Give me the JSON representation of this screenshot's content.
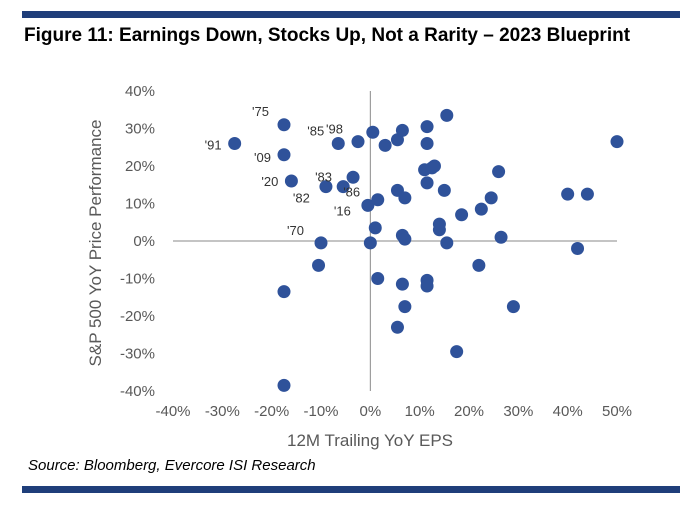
{
  "figure": {
    "title": "Figure 11: Earnings Down, Stocks Up, Not a Rarity – 2023 Blueprint",
    "source": "Source: Bloomberg, Evercore ISI Research"
  },
  "colors": {
    "accent": "#1f3e7a",
    "marker": "#2f529a",
    "axis": "#8a8a8a",
    "text": "#595959"
  },
  "chart_data": {
    "type": "scatter",
    "title": "",
    "xlabel": "12M Trailing YoY EPS",
    "ylabel": "S&P 500 YoY Price Performance",
    "xlim": [
      -40,
      50
    ],
    "ylim": [
      -40,
      40
    ],
    "x_ticks": [
      -40,
      -30,
      -20,
      -10,
      0,
      10,
      20,
      30,
      40,
      50
    ],
    "y_ticks": [
      -40,
      -30,
      -20,
      -10,
      0,
      10,
      20,
      30,
      40
    ],
    "x_tick_labels": [
      "-40%",
      "-30%",
      "-20%",
      "-10%",
      "0%",
      "10%",
      "20%",
      "30%",
      "40%",
      "50%"
    ],
    "y_tick_labels": [
      "-40%",
      "-30%",
      "-20%",
      "-10%",
      "0%",
      "10%",
      "20%",
      "30%",
      "40%"
    ],
    "grid": false,
    "legend": "none",
    "points": [
      {
        "x": -27.5,
        "y": 26,
        "label": "'91"
      },
      {
        "x": -17.5,
        "y": 31,
        "label": "'75"
      },
      {
        "x": -17.5,
        "y": 23,
        "label": "'09"
      },
      {
        "x": -16,
        "y": 16,
        "label": "'20"
      },
      {
        "x": -9,
        "y": 14.5,
        "label": "'82"
      },
      {
        "x": -10,
        "y": -0.5,
        "label": "'70"
      },
      {
        "x": -6.5,
        "y": 26,
        "label": "'85"
      },
      {
        "x": -2.5,
        "y": 26.5,
        "label": "'98"
      },
      {
        "x": -3.5,
        "y": 17,
        "label": "'83"
      },
      {
        "x": -5.5,
        "y": 14.5,
        "label": "'86"
      },
      {
        "x": -0.5,
        "y": 9.5,
        "label": "'16"
      },
      {
        "x": -17.5,
        "y": -13.5
      },
      {
        "x": -17.5,
        "y": -38.5
      },
      {
        "x": -10.5,
        "y": -6.5
      },
      {
        "x": 0.5,
        "y": 29
      },
      {
        "x": 3,
        "y": 25.5
      },
      {
        "x": 5.5,
        "y": 27
      },
      {
        "x": 6.5,
        "y": 29.5
      },
      {
        "x": 11.5,
        "y": 30.5
      },
      {
        "x": 15.5,
        "y": 33.5
      },
      {
        "x": 11.5,
        "y": 26
      },
      {
        "x": 11,
        "y": 19
      },
      {
        "x": 12.5,
        "y": 19.5
      },
      {
        "x": 13,
        "y": 20
      },
      {
        "x": 11.5,
        "y": 15.5
      },
      {
        "x": 15,
        "y": 13.5
      },
      {
        "x": 5.5,
        "y": 13.5
      },
      {
        "x": 7,
        "y": 11.5
      },
      {
        "x": 1.5,
        "y": 11
      },
      {
        "x": 1,
        "y": 3.5
      },
      {
        "x": 0,
        "y": -0.5
      },
      {
        "x": 6.5,
        "y": 1.5
      },
      {
        "x": 7,
        "y": 0.5
      },
      {
        "x": 14,
        "y": 4.5
      },
      {
        "x": 14,
        "y": 3
      },
      {
        "x": 15.5,
        "y": -0.5
      },
      {
        "x": 18.5,
        "y": 7
      },
      {
        "x": 22.5,
        "y": 8.5
      },
      {
        "x": 24.5,
        "y": 11.5
      },
      {
        "x": 26,
        "y": 18.5
      },
      {
        "x": 26.5,
        "y": 1
      },
      {
        "x": 22,
        "y": -6.5
      },
      {
        "x": 1.5,
        "y": -10
      },
      {
        "x": 6.5,
        "y": -11.5
      },
      {
        "x": 11.5,
        "y": -10.5
      },
      {
        "x": 11.5,
        "y": -12
      },
      {
        "x": 7,
        "y": -17.5
      },
      {
        "x": 5.5,
        "y": -23
      },
      {
        "x": 17.5,
        "y": -29.5
      },
      {
        "x": 29,
        "y": -17.5
      },
      {
        "x": 40,
        "y": 12.5
      },
      {
        "x": 44,
        "y": 12.5
      },
      {
        "x": 42,
        "y": -2
      },
      {
        "x": 50,
        "y": 26.5
      }
    ]
  }
}
